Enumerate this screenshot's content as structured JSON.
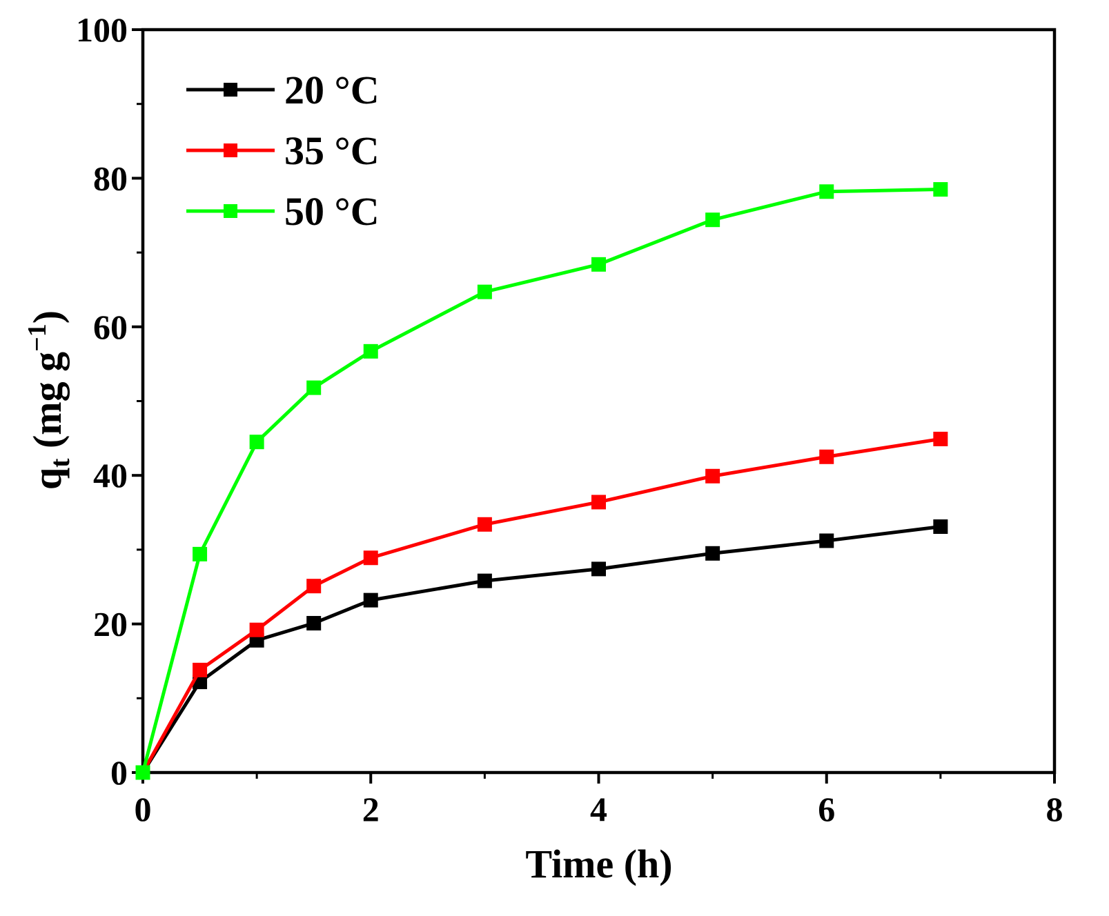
{
  "chart_data": {
    "type": "line",
    "title": "",
    "xlabel": "Time (h)",
    "ylabel": {
      "main": "q",
      "subscript": "t",
      "unit_open": " (mg g",
      "superscript": "−1",
      "unit_close": ")"
    },
    "xlim": [
      0,
      8
    ],
    "ylim": [
      0,
      100
    ],
    "x_ticks": [
      "0",
      "2",
      "4",
      "6",
      "8"
    ],
    "y_ticks": [
      "0",
      "20",
      "40",
      "60",
      "80",
      "100"
    ],
    "legend_position": "top-left",
    "x": [
      0,
      0.5,
      1,
      1.5,
      2,
      3,
      4,
      5,
      6,
      7
    ],
    "series": [
      {
        "name": "20 °C",
        "color": "#000000",
        "values": [
          0,
          12.2,
          17.8,
          20.1,
          23.2,
          25.8,
          27.4,
          29.5,
          31.2,
          33.1
        ]
      },
      {
        "name": "35 °C",
        "color": "#ff0000",
        "values": [
          0,
          13.8,
          19.2,
          25.1,
          28.9,
          33.4,
          36.4,
          39.9,
          42.5,
          44.9
        ]
      },
      {
        "name": "50 °C",
        "color": "#00ff00",
        "values": [
          0,
          29.4,
          44.5,
          51.8,
          56.7,
          64.7,
          68.4,
          74.4,
          78.2,
          78.5
        ]
      }
    ],
    "grid": false
  }
}
